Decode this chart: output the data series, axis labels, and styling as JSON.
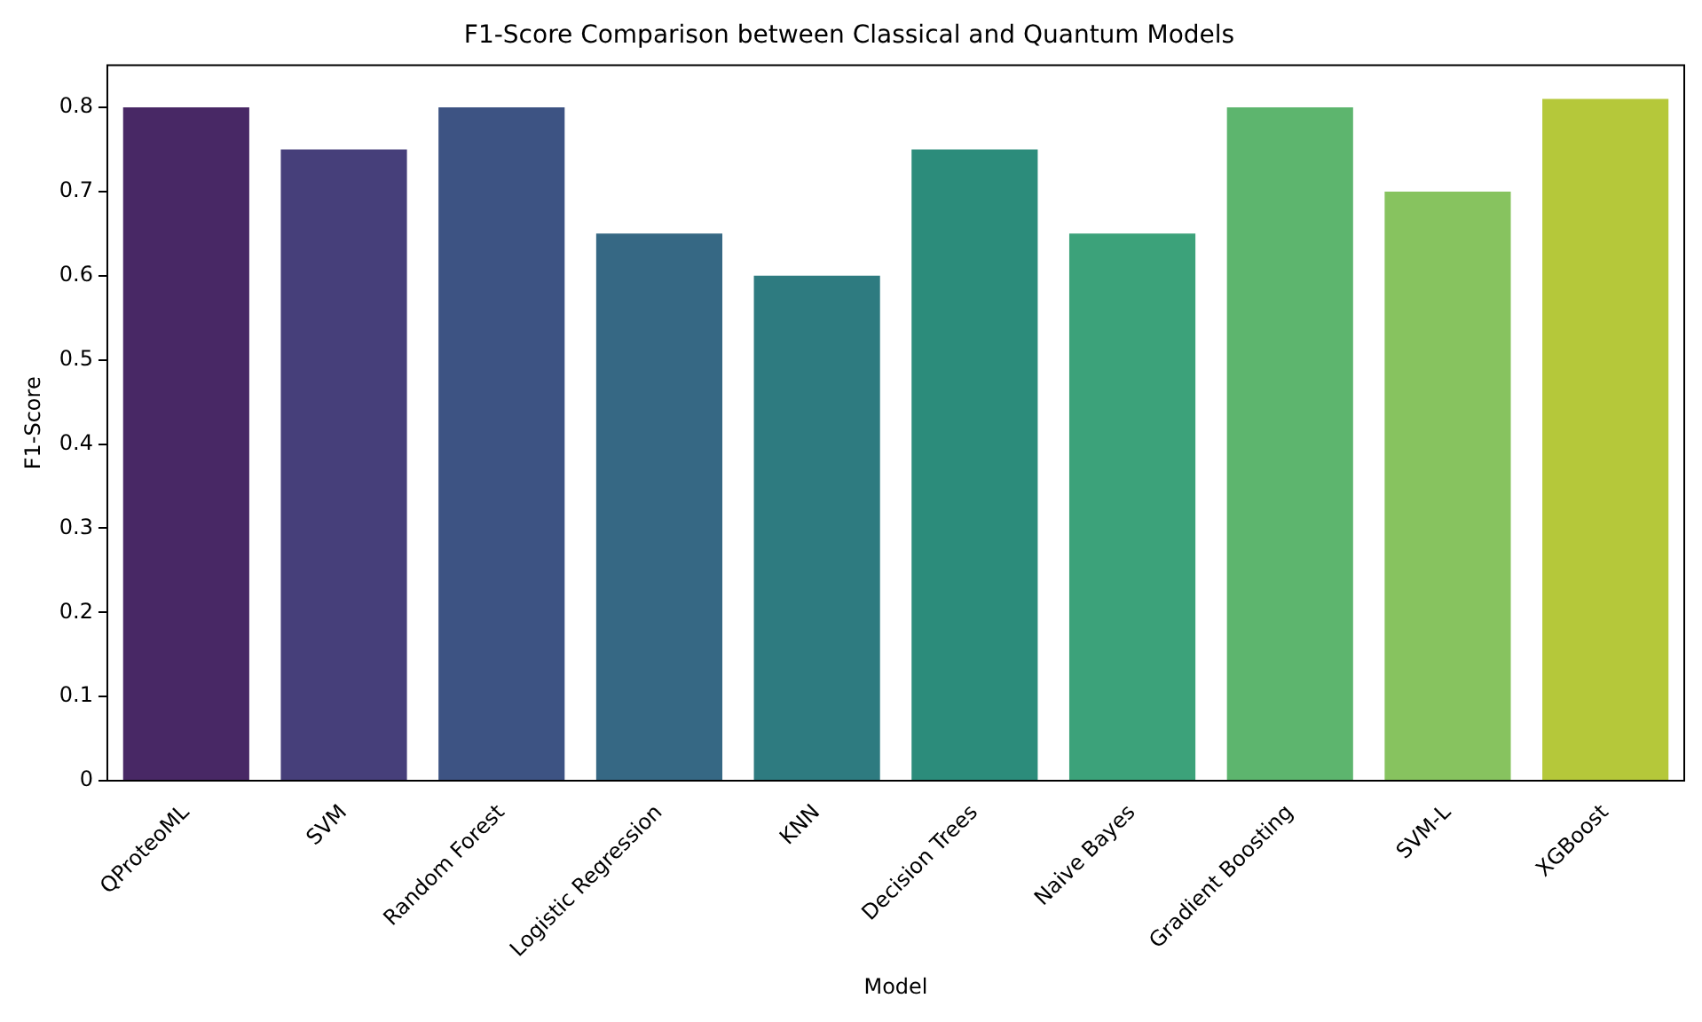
{
  "chart_data": {
    "type": "bar",
    "title": "F1-Score Comparison between Classical and Quantum Models",
    "xlabel": "Model",
    "ylabel": "F1-Score",
    "categories": [
      "QProteoML",
      "SVM",
      "Random Forest",
      "Logistic Regression",
      "KNN",
      "Decision Trees",
      "Naive Bayes",
      "Gradient Boosting",
      "SVM-L",
      "XGBoost"
    ],
    "values": [
      0.8,
      0.75,
      0.8,
      0.65,
      0.6,
      0.75,
      0.65,
      0.8,
      0.7,
      0.81
    ],
    "colors": [
      "#482865",
      "#463f7a",
      "#3d5383",
      "#366884",
      "#2e7b80",
      "#2c8c7b",
      "#3ca27a",
      "#5db56e",
      "#87c35f",
      "#b5c83a"
    ],
    "ylim": [
      0,
      0.85
    ],
    "yticks": [
      0,
      0.1,
      0.2,
      0.3,
      0.4,
      0.5,
      0.6,
      0.7,
      0.8
    ],
    "grid": false,
    "legend": false
  }
}
